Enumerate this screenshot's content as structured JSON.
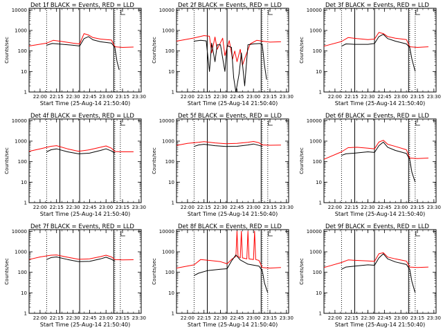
{
  "figure": {
    "background": "#ffffff",
    "axis_color": "#000000",
    "events_color": "#000000",
    "lld_color": "#ff0000"
  },
  "chart_data": [
    {
      "type": "line",
      "title": "Det 1f  BLACK = Events, RED = LLD",
      "xlabel": "Start Time (25-Aug-14 21:50:40)",
      "ylabel": "Counts/sec",
      "y_scale": "log",
      "ylim": [
        1,
        12000
      ],
      "xlim": [
        "21:50",
        "23:32"
      ],
      "x_ticks": [
        "22:00",
        "22:15",
        "22:30",
        "22:45",
        "23:00",
        "23:15",
        "23:30"
      ],
      "y_ticks": [
        "1",
        "10",
        "100",
        "1000",
        "10000"
      ],
      "markers": {
        "solid": [
          "22:18",
          "22:36",
          "23:07"
        ],
        "dotted": [
          "22:06",
          "23:08",
          "23:13"
        ]
      },
      "series": [
        {
          "name": "Events",
          "color": "#000000",
          "x": [
            "22:06",
            "22:11",
            "22:18",
            "22:30",
            "22:36",
            "22:40",
            "22:44",
            "22:48",
            "22:55",
            "23:05",
            "23:08",
            "23:10",
            "23:12"
          ],
          "y": [
            190,
            230,
            215,
            190,
            175,
            400,
            500,
            350,
            280,
            240,
            150,
            30,
            12
          ]
        },
        {
          "name": "LLD",
          "color": "#ff0000",
          "x": [
            "21:50",
            "22:06",
            "22:12",
            "22:20",
            "22:30",
            "22:36",
            "22:40",
            "22:44",
            "22:48",
            "22:55",
            "23:05",
            "23:08",
            "23:15",
            "23:25"
          ],
          "y": [
            175,
            240,
            330,
            290,
            240,
            220,
            700,
            600,
            450,
            380,
            340,
            160,
            150,
            155
          ]
        }
      ]
    },
    {
      "type": "line",
      "title": "Det 2f  BLACK = Events, RED = LLD",
      "xlabel": "Start Time (25-Aug-14 21:50:40)",
      "ylabel": "Counts/sec",
      "y_scale": "log",
      "ylim": [
        1,
        12000
      ],
      "xlim": [
        "21:50",
        "23:32"
      ],
      "x_ticks": [
        "22:00",
        "22:15",
        "22:30",
        "22:45",
        "23:00",
        "23:15",
        "23:30"
      ],
      "y_ticks": [
        "1",
        "10",
        "100",
        "1000",
        "10000"
      ],
      "markers": {
        "solid": [
          "22:18",
          "22:36",
          "23:07"
        ],
        "dotted": [
          "22:06",
          "23:08",
          "23:13"
        ]
      },
      "series": [
        {
          "name": "Events",
          "color": "#000000",
          "x": [
            "22:06",
            "22:12",
            "22:17",
            "22:20",
            "22:22",
            "22:25",
            "22:27",
            "22:30",
            "22:34",
            "22:36",
            "22:40",
            "22:42",
            "22:44",
            "22:47",
            "22:49",
            "22:52",
            "22:55",
            "23:00",
            "23:06",
            "23:08",
            "23:10",
            "23:12"
          ],
          "y": [
            300,
            330,
            310,
            10,
            240,
            30,
            200,
            200,
            10,
            180,
            150,
            5,
            1,
            8,
            80,
            2,
            200,
            220,
            230,
            200,
            20,
            4
          ]
        },
        {
          "name": "LLD",
          "color": "#ff0000",
          "x": [
            "21:50",
            "22:06",
            "22:15",
            "22:20",
            "22:22",
            "22:25",
            "22:27",
            "22:32",
            "22:34",
            "22:38",
            "22:41",
            "22:43",
            "22:45",
            "22:48",
            "22:50",
            "22:53",
            "22:57",
            "23:03",
            "23:08",
            "23:15",
            "23:25"
          ],
          "y": [
            300,
            430,
            560,
            520,
            80,
            480,
            120,
            420,
            60,
            320,
            40,
            100,
            30,
            120,
            20,
            60,
            220,
            330,
            300,
            270,
            280
          ]
        }
      ]
    },
    {
      "type": "line",
      "title": "Det 3f  BLACK = Events, RED = LLD",
      "xlabel": "Start Time (25-Aug-14 21:50:40)",
      "ylabel": "Counts/sec",
      "y_scale": "log",
      "ylim": [
        1,
        12000
      ],
      "xlim": [
        "21:50",
        "23:32"
      ],
      "x_ticks": [
        "22:00",
        "22:15",
        "22:30",
        "22:45",
        "23:00",
        "23:15",
        "23:30"
      ],
      "y_ticks": [
        "1",
        "10",
        "100",
        "1000",
        "10000"
      ],
      "markers": {
        "solid": [
          "22:18",
          "22:36",
          "23:07"
        ],
        "dotted": [
          "22:06",
          "23:08",
          "23:13"
        ]
      },
      "series": [
        {
          "name": "Events",
          "color": "#000000",
          "x": [
            "22:06",
            "22:10",
            "22:18",
            "22:30",
            "22:36",
            "22:40",
            "22:44",
            "22:48",
            "22:55",
            "23:05",
            "23:08",
            "23:10",
            "23:13"
          ],
          "y": [
            170,
            220,
            210,
            210,
            230,
            500,
            650,
            400,
            300,
            220,
            150,
            40,
            10
          ]
        },
        {
          "name": "LLD",
          "color": "#ff0000",
          "x": [
            "21:50",
            "22:06",
            "22:12",
            "22:20",
            "22:30",
            "22:36",
            "22:40",
            "22:44",
            "22:48",
            "22:55",
            "23:05",
            "23:08",
            "23:15",
            "23:25"
          ],
          "y": [
            170,
            290,
            450,
            400,
            360,
            380,
            800,
            700,
            500,
            420,
            360,
            160,
            150,
            160
          ]
        }
      ]
    },
    {
      "type": "line",
      "title": "Det 4f  BLACK = Events, RED = LLD",
      "xlabel": "Start Time (25-Aug-14 21:50:40)",
      "ylabel": "Counts/sec",
      "y_scale": "log",
      "ylim": [
        1,
        12000
      ],
      "xlim": [
        "21:50",
        "23:32"
      ],
      "x_ticks": [
        "22:00",
        "22:15",
        "22:30",
        "22:45",
        "23:00",
        "23:15",
        "23:30"
      ],
      "y_ticks": [
        "1",
        "10",
        "100",
        "1000",
        "10000"
      ],
      "markers": {
        "solid": [
          "22:18",
          "22:36",
          "23:07"
        ],
        "dotted": [
          "22:06",
          "23:08",
          "23:13"
        ]
      },
      "series": [
        {
          "name": "Events",
          "color": "#000000",
          "x": [
            "22:06",
            "22:10",
            "22:15",
            "22:25",
            "22:35",
            "22:45",
            "22:55",
            "23:00",
            "23:05",
            "23:08"
          ],
          "y": [
            300,
            380,
            420,
            300,
            240,
            260,
            350,
            420,
            330,
            260
          ]
        },
        {
          "name": "LLD",
          "color": "#ff0000",
          "x": [
            "21:50",
            "22:00",
            "22:10",
            "22:15",
            "22:25",
            "22:35",
            "22:45",
            "22:55",
            "23:00",
            "23:05",
            "23:08",
            "23:15",
            "23:25"
          ],
          "y": [
            320,
            420,
            560,
            600,
            420,
            320,
            380,
            500,
            580,
            450,
            310,
            300,
            300
          ]
        }
      ]
    },
    {
      "type": "line",
      "title": "Det 5f  BLACK = Events, RED = LLD",
      "xlabel": "Start Time (25-Aug-14 21:50:40)",
      "ylabel": "Counts/sec",
      "y_scale": "log",
      "ylim": [
        1,
        12000
      ],
      "xlim": [
        "21:50",
        "23:32"
      ],
      "x_ticks": [
        "22:00",
        "22:15",
        "22:30",
        "22:45",
        "23:00",
        "23:15",
        "23:30"
      ],
      "y_ticks": [
        "1",
        "10",
        "100",
        "1000",
        "10000"
      ],
      "markers": {
        "solid": [
          "22:18",
          "22:36",
          "23:07"
        ],
        "dotted": [
          "22:06",
          "23:08",
          "23:13"
        ]
      },
      "series": [
        {
          "name": "Events",
          "color": "#000000",
          "x": [
            "22:06",
            "22:10",
            "22:15",
            "22:25",
            "22:35",
            "22:45",
            "22:55",
            "23:00",
            "23:05",
            "23:08"
          ],
          "y": [
            550,
            650,
            700,
            600,
            550,
            560,
            650,
            720,
            620,
            550
          ]
        },
        {
          "name": "LLD",
          "color": "#ff0000",
          "x": [
            "21:50",
            "22:00",
            "22:10",
            "22:15",
            "22:25",
            "22:35",
            "22:45",
            "22:55",
            "23:00",
            "23:05",
            "23:08",
            "23:15",
            "23:25"
          ],
          "y": [
            620,
            780,
            880,
            950,
            820,
            750,
            780,
            880,
            960,
            830,
            650,
            630,
            640
          ]
        }
      ]
    },
    {
      "type": "line",
      "title": "Det 6f  BLACK = Events, RED = LLD",
      "xlabel": "Start Time (25-Aug-14 21:50:40)",
      "ylabel": "Counts/sec",
      "y_scale": "log",
      "ylim": [
        1,
        12000
      ],
      "xlim": [
        "21:50",
        "23:32"
      ],
      "x_ticks": [
        "22:00",
        "22:15",
        "22:30",
        "22:45",
        "23:00",
        "23:15",
        "23:30"
      ],
      "y_ticks": [
        "1",
        "10",
        "100",
        "1000",
        "10000"
      ],
      "markers": {
        "solid": [
          "22:18",
          "22:36",
          "23:07"
        ],
        "dotted": [
          "22:06",
          "23:08",
          "23:13"
        ]
      },
      "series": [
        {
          "name": "Events",
          "color": "#000000",
          "x": [
            "22:06",
            "22:10",
            "22:18",
            "22:30",
            "22:36",
            "22:40",
            "22:44",
            "22:48",
            "22:55",
            "23:05",
            "23:08",
            "23:10",
            "23:13"
          ],
          "y": [
            200,
            240,
            260,
            300,
            280,
            600,
            900,
            500,
            350,
            250,
            130,
            30,
            10
          ]
        },
        {
          "name": "LLD",
          "color": "#ff0000",
          "x": [
            "21:50",
            "22:06",
            "22:12",
            "22:20",
            "22:30",
            "22:36",
            "22:40",
            "22:44",
            "22:48",
            "22:55",
            "23:05",
            "23:08",
            "23:15",
            "23:25"
          ],
          "y": [
            130,
            300,
            480,
            500,
            450,
            420,
            900,
            1100,
            700,
            550,
            380,
            150,
            140,
            150
          ]
        }
      ]
    },
    {
      "type": "line",
      "title": "Det 7f  BLACK = Events, RED = LLD",
      "xlabel": "Start Time (25-Aug-14 21:50:40)",
      "ylabel": "Counts/sec",
      "y_scale": "log",
      "ylim": [
        1,
        12000
      ],
      "xlim": [
        "21:50",
        "23:32"
      ],
      "x_ticks": [
        "22:00",
        "22:15",
        "22:30",
        "22:45",
        "23:00",
        "23:15",
        "23:30"
      ],
      "y_ticks": [
        "1",
        "10",
        "100",
        "1000",
        "10000"
      ],
      "markers": {
        "solid": [
          "22:18",
          "22:36",
          "23:07"
        ],
        "dotted": [
          "22:06",
          "23:08",
          "23:13"
        ]
      },
      "series": [
        {
          "name": "Events",
          "color": "#000000",
          "x": [
            "22:06",
            "22:10",
            "22:15",
            "22:25",
            "22:35",
            "22:45",
            "22:55",
            "23:00",
            "23:05",
            "23:08"
          ],
          "y": [
            420,
            520,
            560,
            420,
            330,
            340,
            450,
            540,
            430,
            350
          ]
        },
        {
          "name": "LLD",
          "color": "#ff0000",
          "x": [
            "21:50",
            "22:00",
            "22:10",
            "22:15",
            "22:25",
            "22:35",
            "22:45",
            "22:55",
            "23:00",
            "23:05",
            "23:08",
            "23:15",
            "23:25"
          ],
          "y": [
            420,
            560,
            680,
            700,
            540,
            430,
            450,
            580,
            680,
            560,
            420,
            400,
            410
          ]
        }
      ]
    },
    {
      "type": "line",
      "title": "Det 8f  BLACK = Events, RED = LLD",
      "xlabel": "Start Time (25-Aug-14 21:50:40)",
      "ylabel": "Counts/sec",
      "y_scale": "log",
      "ylim": [
        1,
        12000
      ],
      "xlim": [
        "21:50",
        "23:32"
      ],
      "x_ticks": [
        "22:00",
        "22:15",
        "22:30",
        "22:45",
        "23:00",
        "23:15",
        "23:30"
      ],
      "y_ticks": [
        "1",
        "10",
        "100",
        "1000",
        "10000"
      ],
      "markers": {
        "solid": [
          "22:18",
          "22:36",
          "23:07"
        ],
        "dotted": [
          "22:06",
          "23:08",
          "23:13"
        ]
      },
      "series": [
        {
          "name": "Events",
          "color": "#000000",
          "x": [
            "22:06",
            "22:10",
            "22:18",
            "22:30",
            "22:36",
            "22:40",
            "22:44",
            "22:48",
            "22:55",
            "23:05",
            "23:08",
            "23:10",
            "23:13"
          ],
          "y": [
            70,
            90,
            120,
            140,
            150,
            350,
            700,
            400,
            250,
            200,
            120,
            30,
            10
          ]
        },
        {
          "name": "LLD",
          "color": "#ff0000",
          "x": [
            "21:50",
            "22:06",
            "22:12",
            "22:20",
            "22:30",
            "22:36",
            "22:40",
            "22:44",
            "22:45",
            "22:46",
            "22:48",
            "22:49",
            "22:50",
            "22:54",
            "22:55",
            "22:56",
            "23:00",
            "23:01",
            "23:02",
            "23:05",
            "23:08",
            "23:15",
            "23:25"
          ],
          "y": [
            160,
            230,
            420,
            380,
            330,
            260,
            420,
            600,
            10000,
            600,
            500,
            10000,
            500,
            450,
            10000,
            450,
            420,
            10000,
            420,
            380,
            170,
            160,
            170
          ]
        }
      ]
    },
    {
      "type": "line",
      "title": "Det 9f  BLACK = Events, RED = LLD",
      "xlabel": "Start Time (25-Aug-14 21:50:40)",
      "ylabel": "Counts/sec",
      "y_scale": "log",
      "ylim": [
        1,
        12000
      ],
      "xlim": [
        "21:50",
        "23:32"
      ],
      "x_ticks": [
        "22:00",
        "22:15",
        "22:30",
        "22:45",
        "23:00",
        "23:15",
        "23:30"
      ],
      "y_ticks": [
        "1",
        "10",
        "100",
        "1000",
        "10000"
      ],
      "markers": {
        "solid": [
          "22:18",
          "22:36",
          "23:07"
        ],
        "dotted": [
          "22:06",
          "23:08",
          "23:13"
        ]
      },
      "series": [
        {
          "name": "Events",
          "color": "#000000",
          "x": [
            "22:06",
            "22:10",
            "22:18",
            "22:30",
            "22:36",
            "22:40",
            "22:44",
            "22:48",
            "22:55",
            "23:05",
            "23:08",
            "23:10",
            "23:13"
          ],
          "y": [
            140,
            180,
            200,
            230,
            220,
            500,
            800,
            450,
            320,
            240,
            140,
            35,
            10
          ]
        },
        {
          "name": "LLD",
          "color": "#ff0000",
          "x": [
            "21:50",
            "22:06",
            "22:12",
            "22:20",
            "22:30",
            "22:36",
            "22:40",
            "22:44",
            "22:48",
            "22:55",
            "23:05",
            "23:08",
            "23:15",
            "23:25"
          ],
          "y": [
            170,
            300,
            400,
            380,
            360,
            340,
            800,
            900,
            550,
            450,
            350,
            180,
            170,
            180
          ]
        }
      ]
    }
  ]
}
